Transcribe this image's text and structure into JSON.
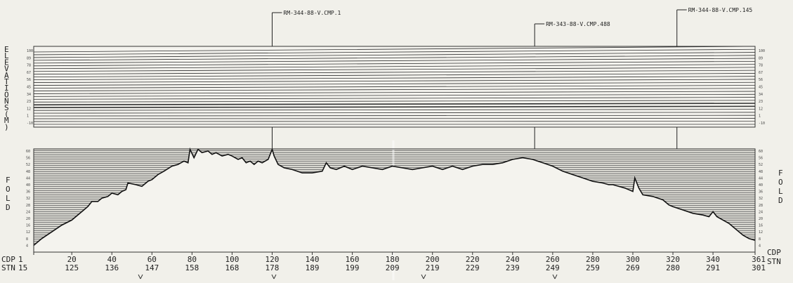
{
  "chart_data": {
    "type": "line",
    "series": [],
    "callouts": [
      {
        "label": "RM-344-88-V.CMP.1",
        "cdp": 120
      },
      {
        "label": "RM-343-88-V.CMP.488",
        "cdp": 251
      },
      {
        "label": "RM-344-88-V.CMP.145",
        "cdp": 322
      }
    ],
    "elevation_panel": {
      "ylabel": "ELEVATIONS(M)",
      "ticks": [
        "100",
        "89",
        "78",
        "67",
        "56",
        "45",
        "34",
        "23",
        "12",
        "1",
        "-10"
      ]
    },
    "fold_panel": {
      "ylabel": "FOLD",
      "ticks": [
        "60",
        "56",
        "52",
        "48",
        "44",
        "40",
        "36",
        "32",
        "28",
        "24",
        "20",
        "16",
        "12",
        "8",
        "4"
      ],
      "ylim": [
        0,
        60
      ],
      "xlim": [
        1,
        361
      ],
      "points": [
        [
          1,
          4
        ],
        [
          5,
          8
        ],
        [
          10,
          12
        ],
        [
          15,
          16
        ],
        [
          20,
          19
        ],
        [
          25,
          24
        ],
        [
          28,
          27
        ],
        [
          30,
          30
        ],
        [
          33,
          30
        ],
        [
          35,
          32
        ],
        [
          38,
          33
        ],
        [
          40,
          35
        ],
        [
          43,
          34
        ],
        [
          45,
          36
        ],
        [
          47,
          37
        ],
        [
          48,
          41
        ],
        [
          52,
          40
        ],
        [
          55,
          39
        ],
        [
          58,
          42
        ],
        [
          60,
          43
        ],
        [
          63,
          46
        ],
        [
          66,
          48
        ],
        [
          70,
          51
        ],
        [
          73,
          52
        ],
        [
          76,
          54
        ],
        [
          78,
          53
        ],
        [
          79,
          61
        ],
        [
          81,
          56
        ],
        [
          83,
          61
        ],
        [
          85,
          59
        ],
        [
          88,
          60
        ],
        [
          90,
          58
        ],
        [
          92,
          59
        ],
        [
          95,
          57
        ],
        [
          98,
          58
        ],
        [
          100,
          57
        ],
        [
          103,
          55
        ],
        [
          105,
          56
        ],
        [
          107,
          53
        ],
        [
          109,
          54
        ],
        [
          111,
          52
        ],
        [
          113,
          54
        ],
        [
          115,
          53
        ],
        [
          118,
          55
        ],
        [
          120,
          61
        ],
        [
          121,
          57
        ],
        [
          123,
          52
        ],
        [
          126,
          50
        ],
        [
          130,
          49
        ],
        [
          135,
          47
        ],
        [
          140,
          47
        ],
        [
          145,
          48
        ],
        [
          147,
          53
        ],
        [
          149,
          50
        ],
        [
          152,
          49
        ],
        [
          156,
          51
        ],
        [
          160,
          49
        ],
        [
          165,
          51
        ],
        [
          170,
          50
        ],
        [
          175,
          49
        ],
        [
          180,
          51
        ],
        [
          185,
          50
        ],
        [
          190,
          49
        ],
        [
          195,
          50
        ],
        [
          200,
          51
        ],
        [
          205,
          49
        ],
        [
          210,
          51
        ],
        [
          215,
          49
        ],
        [
          220,
          51
        ],
        [
          225,
          52
        ],
        [
          230,
          52
        ],
        [
          235,
          53
        ],
        [
          240,
          55
        ],
        [
          245,
          56
        ],
        [
          250,
          55
        ],
        [
          255,
          53
        ],
        [
          260,
          51
        ],
        [
          265,
          48
        ],
        [
          270,
          46
        ],
        [
          275,
          44
        ],
        [
          280,
          42
        ],
        [
          285,
          41
        ],
        [
          288,
          40
        ],
        [
          290,
          40
        ],
        [
          293,
          39
        ],
        [
          296,
          38
        ],
        [
          298,
          37
        ],
        [
          300,
          36
        ],
        [
          301,
          44
        ],
        [
          303,
          38
        ],
        [
          305,
          34
        ],
        [
          310,
          33
        ],
        [
          315,
          31
        ],
        [
          318,
          28
        ],
        [
          320,
          27
        ],
        [
          325,
          25
        ],
        [
          330,
          23
        ],
        [
          335,
          22
        ],
        [
          338,
          21
        ],
        [
          340,
          24
        ],
        [
          342,
          21
        ],
        [
          345,
          19
        ],
        [
          348,
          17
        ],
        [
          350,
          15
        ],
        [
          352,
          13
        ],
        [
          355,
          10
        ],
        [
          358,
          8
        ],
        [
          361,
          7
        ]
      ]
    },
    "x_axis": {
      "row1_label": "CDP",
      "row2_label": "STN",
      "cdp_ticks": [
        "1",
        "20",
        "40",
        "60",
        "80",
        "100",
        "120",
        "140",
        "160",
        "180",
        "200",
        "220",
        "240",
        "260",
        "280",
        "300",
        "320",
        "340",
        "361"
      ],
      "stn_ticks": [
        "15",
        "125",
        "136",
        "147",
        "158",
        "168",
        "178",
        "189",
        "199",
        "209",
        "219",
        "229",
        "239",
        "249",
        "259",
        "269",
        "280",
        "291",
        "301"
      ]
    }
  }
}
